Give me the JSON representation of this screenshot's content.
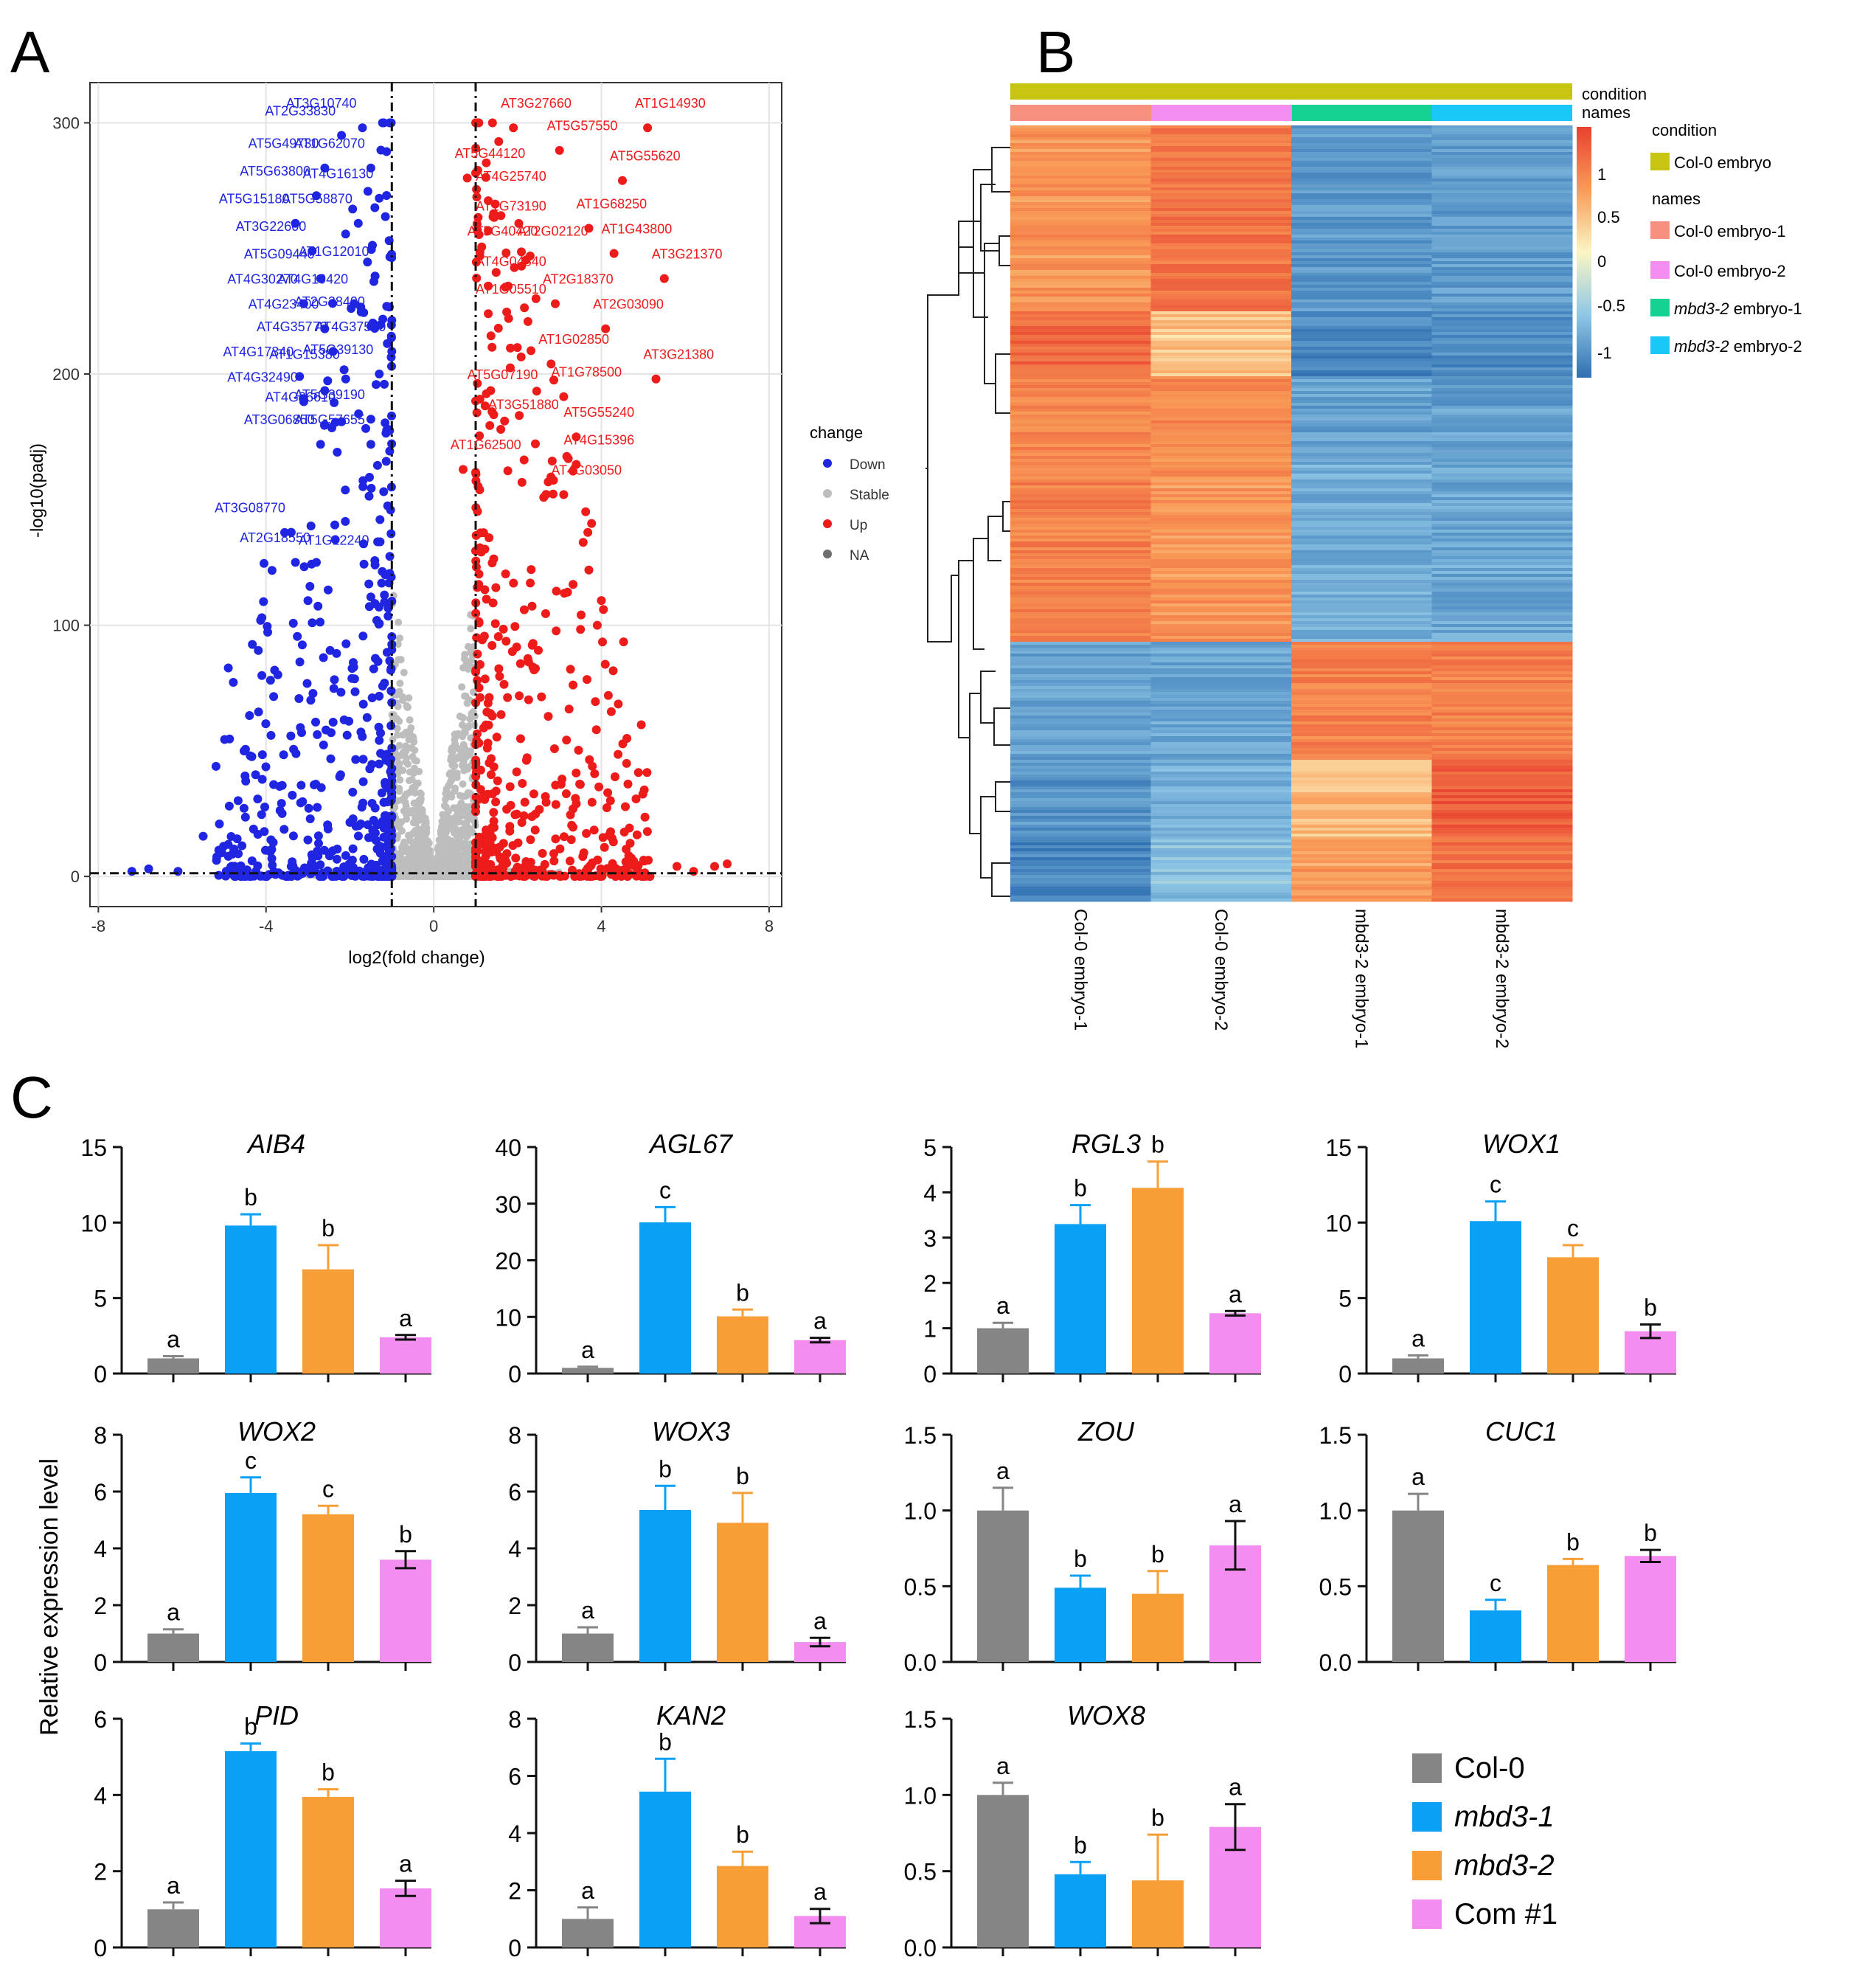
{
  "panels": {
    "A": "A",
    "B": "B",
    "C": "C"
  },
  "colors": {
    "down": "#1f25e0",
    "stable": "#bdbdbd",
    "up": "#ee1b1b",
    "na": "#6e6e6e",
    "colBar": "#858585",
    "mbd31": "#0aa0f5",
    "mbd32": "#f79f36",
    "com": "#f38ef0",
    "condition": "#c8c412",
    "col1": "#f6917f",
    "col2": "#f38ef0",
    "mbd1": "#16d292",
    "mbd2": "#19c8f6"
  },
  "volcano": {
    "xlabel": "log2(fold change)",
    "ylabel": "-log10(padj)",
    "xticks": [
      -8,
      -4,
      0,
      4,
      8
    ],
    "yticks": [
      0,
      100,
      200,
      300
    ],
    "xlim": [
      -8.2,
      8.3
    ],
    "ylim": [
      -12,
      316
    ],
    "thresholds": {
      "x": [
        -1,
        1
      ],
      "y": 1.3
    },
    "legend": {
      "title": "change",
      "items": [
        "Down",
        "Stable",
        "Up",
        "NA"
      ]
    },
    "labels_down": [
      {
        "t": "AT3G10740",
        "x": -1.7,
        "y": 306
      },
      {
        "t": "AT2G33830",
        "x": -2.2,
        "y": 303
      },
      {
        "t": "AT5G49730",
        "x": -2.6,
        "y": 290
      },
      {
        "t": "AT1G62070",
        "x": -1.5,
        "y": 290
      },
      {
        "t": "AT5G63800",
        "x": -2.8,
        "y": 279
      },
      {
        "t": "AT4G16130",
        "x": -1.3,
        "y": 278
      },
      {
        "t": "AT5G15180",
        "x": -3.3,
        "y": 268
      },
      {
        "t": "AT5G58870",
        "x": -1.8,
        "y": 268
      },
      {
        "t": "AT3G22600",
        "x": -2.9,
        "y": 257
      },
      {
        "t": "AT5G09440",
        "x": -2.7,
        "y": 246
      },
      {
        "t": "AT1G12010",
        "x": -1.4,
        "y": 247
      },
      {
        "t": "AT4G30270",
        "x": -3.1,
        "y": 236
      },
      {
        "t": "AT4G19420",
        "x": -1.9,
        "y": 236
      },
      {
        "t": "AT4G23400",
        "x": -2.6,
        "y": 226
      },
      {
        "t": "AT2G38400",
        "x": -1.5,
        "y": 227
      },
      {
        "t": "AT4G35770",
        "x": -2.4,
        "y": 217
      },
      {
        "t": "AT4G37520",
        "x": -1.0,
        "y": 217
      },
      {
        "t": "AT4G17340",
        "x": -3.2,
        "y": 207
      },
      {
        "t": "AT1G15380",
        "x": -2.1,
        "y": 206
      },
      {
        "t": "AT5G39130",
        "x": -1.3,
        "y": 208
      },
      {
        "t": "AT4G32490",
        "x": -3.1,
        "y": 197
      },
      {
        "t": "AT4G36610",
        "x": -2.2,
        "y": 189
      },
      {
        "t": "AT5G39190",
        "x": -1.5,
        "y": 190
      },
      {
        "t": "AT3G06850",
        "x": -2.7,
        "y": 180
      },
      {
        "t": "AT5G57655",
        "x": -1.5,
        "y": 180
      },
      {
        "t": "AT3G08770",
        "x": -3.4,
        "y": 145
      },
      {
        "t": "AT2G18550",
        "x": -2.8,
        "y": 133
      },
      {
        "t": "AT1G12240",
        "x": -1.4,
        "y": 132
      }
    ],
    "labels_up": [
      {
        "t": "AT3G27660",
        "x": 1.6,
        "y": 306
      },
      {
        "t": "AT1G14930",
        "x": 4.8,
        "y": 306
      },
      {
        "t": "AT5G57550",
        "x": 2.7,
        "y": 297
      },
      {
        "t": "AT5G44120",
        "x": 0.5,
        "y": 286
      },
      {
        "t": "AT5G55620",
        "x": 4.2,
        "y": 285
      },
      {
        "t": "AT4G25740",
        "x": 1.0,
        "y": 277
      },
      {
        "t": "AT1G73190",
        "x": 1.0,
        "y": 265
      },
      {
        "t": "AT1G68250",
        "x": 3.4,
        "y": 266
      },
      {
        "t": "AT5G40420",
        "x": 0.8,
        "y": 255
      },
      {
        "t": "AT2G02120",
        "x": 2.0,
        "y": 255
      },
      {
        "t": "AT1G43800",
        "x": 4.0,
        "y": 256
      },
      {
        "t": "AT4G04840",
        "x": 1.0,
        "y": 243
      },
      {
        "t": "AT3G21370",
        "x": 5.2,
        "y": 246
      },
      {
        "t": "AT2G18370",
        "x": 2.6,
        "y": 236
      },
      {
        "t": "AT1G05510",
        "x": 1.0,
        "y": 232
      },
      {
        "t": "AT2G03090",
        "x": 3.8,
        "y": 226
      },
      {
        "t": "AT1G02850",
        "x": 2.5,
        "y": 212
      },
      {
        "t": "AT3G21380",
        "x": 5.0,
        "y": 206
      },
      {
        "t": "AT5G07190",
        "x": 0.8,
        "y": 198
      },
      {
        "t": "AT1G78500",
        "x": 2.8,
        "y": 199
      },
      {
        "t": "AT3G51880",
        "x": 1.3,
        "y": 186
      },
      {
        "t": "AT5G55240",
        "x": 3.1,
        "y": 183
      },
      {
        "t": "AT1G62500",
        "x": 0.4,
        "y": 170
      },
      {
        "t": "AT4G15396",
        "x": 3.1,
        "y": 172
      },
      {
        "t": "AT4G03050",
        "x": 2.8,
        "y": 160
      }
    ]
  },
  "heatmap": {
    "columns": [
      "Col-0 embryo-1",
      "Col-0 embryo-2",
      "mbd3-2 embryo-1",
      "mbd3-2 embryo-2"
    ],
    "annotation_titles": [
      "condition",
      "names"
    ],
    "scale_ticks": [
      "1",
      "0.5",
      "0",
      "-0.5",
      "-1"
    ],
    "legend": {
      "condition_title": "condition",
      "condition_items": [
        "Col-0 embryo"
      ],
      "names_title": "names",
      "names_items": [
        {
          "italic": "",
          "rest": "Col-0 embryo-1"
        },
        {
          "italic": "",
          "rest": "Col-0 embryo-2"
        },
        {
          "italic": "mbd3-2",
          "rest": " embryo-1"
        },
        {
          "italic": "mbd3-2",
          "rest": " embryo-2"
        }
      ]
    },
    "blocks": [
      {
        "f": 0.24,
        "v": [
          0.55,
          0.8,
          -0.85,
          -0.85
        ]
      },
      {
        "f": 0.085,
        "v": [
          0.9,
          0.25,
          -1.0,
          -0.95
        ]
      },
      {
        "f": 0.105,
        "v": [
          0.65,
          0.65,
          -0.8,
          -0.8
        ]
      },
      {
        "f": 0.235,
        "v": [
          0.7,
          0.55,
          -0.7,
          -0.75
        ]
      },
      {
        "f": 0.15,
        "v": [
          -0.8,
          -0.75,
          0.7,
          0.7
        ]
      },
      {
        "f": 0.1,
        "v": [
          -0.9,
          -0.7,
          0.3,
          1.0
        ]
      },
      {
        "f": 0.085,
        "v": [
          -1.0,
          -0.55,
          0.5,
          0.85
        ]
      }
    ]
  },
  "ylabel_c": "Relative expression level",
  "legend_c": [
    "Col-0",
    "mbd3-1",
    "mbd3-2",
    "Com #1"
  ],
  "chart_data": [
    {
      "type": "bar",
      "title": "AIB4",
      "categories": [
        "Col-0",
        "mbd3-1",
        "mbd3-2",
        "Com #1"
      ],
      "values": [
        1,
        9.8,
        6.9,
        2.4
      ],
      "errors": [
        0.15,
        0.75,
        1.6,
        0.15
      ],
      "letters": [
        "a",
        "b",
        "b",
        "a"
      ],
      "ylim": [
        0,
        15
      ],
      "yticks": [
        "0",
        "5",
        "10",
        "15"
      ]
    },
    {
      "type": "bar",
      "title": "AGL67",
      "categories": [
        "Col-0",
        "mbd3-1",
        "mbd3-2",
        "Com #1"
      ],
      "values": [
        1,
        26.7,
        10.1,
        5.9
      ],
      "errors": [
        0.2,
        2.7,
        1.2,
        0.4
      ],
      "letters": [
        "a",
        "c",
        "b",
        "a"
      ],
      "ylim": [
        0,
        40
      ],
      "yticks": [
        "0",
        "10",
        "20",
        "30",
        "40"
      ]
    },
    {
      "type": "bar",
      "title": "RGL3",
      "categories": [
        "Col-0",
        "mbd3-1",
        "mbd3-2",
        "Com #1"
      ],
      "values": [
        1,
        3.3,
        4.1,
        1.33
      ],
      "errors": [
        0.12,
        0.42,
        0.58,
        0.05
      ],
      "letters": [
        "a",
        "b",
        "b",
        "a"
      ],
      "ylim": [
        0,
        5
      ],
      "yticks": [
        "0",
        "1",
        "2",
        "3",
        "4",
        "5"
      ]
    },
    {
      "type": "bar",
      "title": "WOX1",
      "categories": [
        "Col-0",
        "mbd3-1",
        "mbd3-2",
        "Com #1"
      ],
      "values": [
        1,
        10.1,
        7.7,
        2.8
      ],
      "errors": [
        0.2,
        1.3,
        0.8,
        0.45
      ],
      "letters": [
        "a",
        "c",
        "c",
        "b"
      ],
      "ylim": [
        0,
        15
      ],
      "yticks": [
        "0",
        "5",
        "10",
        "15"
      ]
    },
    {
      "type": "bar",
      "title": "WOX2",
      "categories": [
        "Col-0",
        "mbd3-1",
        "mbd3-2",
        "Com #1"
      ],
      "values": [
        1,
        5.95,
        5.2,
        3.6
      ],
      "errors": [
        0.15,
        0.55,
        0.3,
        0.3
      ],
      "letters": [
        "a",
        "c",
        "c",
        "b"
      ],
      "ylim": [
        0,
        8
      ],
      "yticks": [
        "0",
        "2",
        "4",
        "6",
        "8"
      ]
    },
    {
      "type": "bar",
      "title": "WOX3",
      "categories": [
        "Col-0",
        "mbd3-1",
        "mbd3-2",
        "Com #1"
      ],
      "values": [
        1,
        5.35,
        4.9,
        0.7
      ],
      "errors": [
        0.22,
        0.85,
        1.05,
        0.15
      ],
      "letters": [
        "a",
        "b",
        "b",
        "a"
      ],
      "ylim": [
        0,
        8
      ],
      "yticks": [
        "0",
        "2",
        "4",
        "6",
        "8"
      ]
    },
    {
      "type": "bar",
      "title": "ZOU",
      "categories": [
        "Col-0",
        "mbd3-1",
        "mbd3-2",
        "Com #1"
      ],
      "values": [
        1,
        0.49,
        0.45,
        0.77
      ],
      "errors": [
        0.15,
        0.08,
        0.15,
        0.16
      ],
      "letters": [
        "a",
        "b",
        "b",
        "a"
      ],
      "ylim": [
        0,
        1.5
      ],
      "yticks": [
        "0.0",
        "0.5",
        "1.0",
        "1.5"
      ]
    },
    {
      "type": "bar",
      "title": "CUC1",
      "categories": [
        "Col-0",
        "mbd3-1",
        "mbd3-2",
        "Com #1"
      ],
      "values": [
        1,
        0.34,
        0.64,
        0.7
      ],
      "errors": [
        0.11,
        0.07,
        0.04,
        0.04
      ],
      "letters": [
        "a",
        "c",
        "b",
        "b"
      ],
      "ylim": [
        0,
        1.5
      ],
      "yticks": [
        "0.0",
        "0.5",
        "1.0",
        "1.5"
      ]
    },
    {
      "type": "bar",
      "title": "PID",
      "categories": [
        "Col-0",
        "mbd3-1",
        "mbd3-2",
        "Com #1"
      ],
      "values": [
        1,
        5.15,
        3.95,
        1.55
      ],
      "errors": [
        0.18,
        0.2,
        0.2,
        0.2
      ],
      "letters": [
        "a",
        "b",
        "b",
        "a"
      ],
      "ylim": [
        0,
        6
      ],
      "yticks": [
        "0",
        "2",
        "4",
        "6"
      ]
    },
    {
      "type": "bar",
      "title": "KAN2",
      "categories": [
        "Col-0",
        "mbd3-1",
        "mbd3-2",
        "Com #1"
      ],
      "values": [
        1,
        5.45,
        2.85,
        1.1
      ],
      "errors": [
        0.4,
        1.15,
        0.5,
        0.25
      ],
      "letters": [
        "a",
        "b",
        "b",
        "a"
      ],
      "ylim": [
        0,
        8
      ],
      "yticks": [
        "0",
        "2",
        "4",
        "6",
        "8"
      ]
    },
    {
      "type": "bar",
      "title": "WOX8",
      "categories": [
        "Col-0",
        "mbd3-1",
        "mbd3-2",
        "Com #1"
      ],
      "values": [
        1,
        0.48,
        0.44,
        0.79
      ],
      "errors": [
        0.08,
        0.08,
        0.3,
        0.15
      ],
      "letters": [
        "a",
        "b",
        "b",
        "a"
      ],
      "ylim": [
        0,
        1.5
      ],
      "yticks": [
        "0.0",
        "0.5",
        "1.0",
        "1.5"
      ]
    }
  ]
}
